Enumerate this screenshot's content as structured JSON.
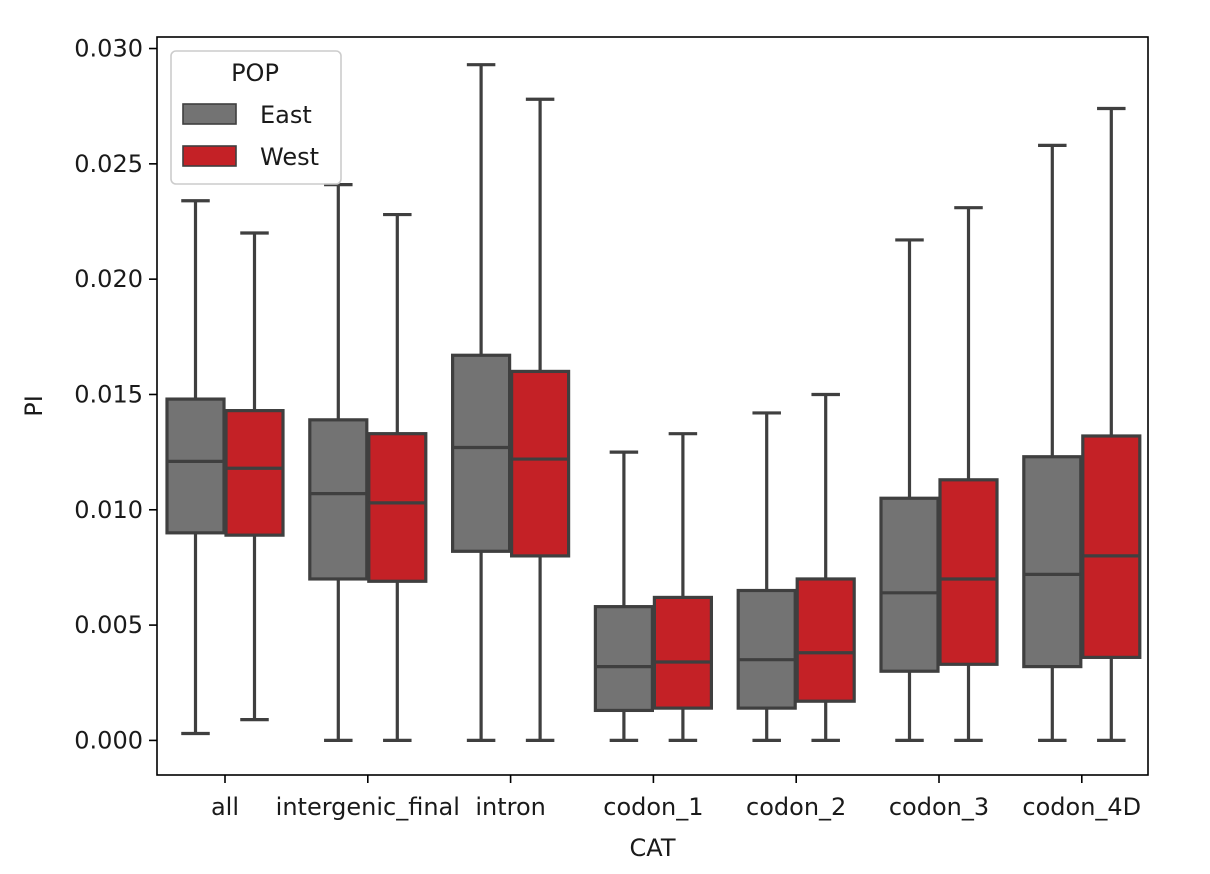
{
  "chart_data": {
    "type": "box",
    "xlabel": "CAT",
    "ylabel": "PI",
    "ylim": [
      -0.0015,
      0.0305
    ],
    "yticks": [
      0.0,
      0.005,
      0.01,
      0.015,
      0.02,
      0.025,
      0.03
    ],
    "ytick_labels": [
      "0.000",
      "0.005",
      "0.010",
      "0.015",
      "0.020",
      "0.025",
      "0.030"
    ],
    "categories": [
      "all",
      "intergenic_final",
      "intron",
      "codon_1",
      "codon_2",
      "codon_3",
      "codon_4D"
    ],
    "legend": {
      "title": "POP",
      "placement": "upper-left"
    },
    "series": [
      {
        "name": "East",
        "color": "#737373",
        "boxes": [
          {
            "whislo": 0.0003,
            "q1": 0.009,
            "med": 0.0121,
            "q3": 0.0148,
            "whishi": 0.0234
          },
          {
            "whislo": 0.0,
            "q1": 0.007,
            "med": 0.0107,
            "q3": 0.0139,
            "whishi": 0.0241
          },
          {
            "whislo": 0.0,
            "q1": 0.0082,
            "med": 0.0127,
            "q3": 0.0167,
            "whishi": 0.0293
          },
          {
            "whislo": 0.0,
            "q1": 0.0013,
            "med": 0.0032,
            "q3": 0.0058,
            "whishi": 0.0125
          },
          {
            "whislo": 0.0,
            "q1": 0.0014,
            "med": 0.0035,
            "q3": 0.0065,
            "whishi": 0.0142
          },
          {
            "whislo": 0.0,
            "q1": 0.003,
            "med": 0.0064,
            "q3": 0.0105,
            "whishi": 0.0217
          },
          {
            "whislo": 0.0,
            "q1": 0.0032,
            "med": 0.0072,
            "q3": 0.0123,
            "whishi": 0.0258
          }
        ]
      },
      {
        "name": "West",
        "color": "#c42126",
        "boxes": [
          {
            "whislo": 0.0009,
            "q1": 0.0089,
            "med": 0.0118,
            "q3": 0.0143,
            "whishi": 0.022
          },
          {
            "whislo": 0.0,
            "q1": 0.0069,
            "med": 0.0103,
            "q3": 0.0133,
            "whishi": 0.0228
          },
          {
            "whislo": 0.0,
            "q1": 0.008,
            "med": 0.0122,
            "q3": 0.016,
            "whishi": 0.0278
          },
          {
            "whislo": 0.0,
            "q1": 0.0014,
            "med": 0.0034,
            "q3": 0.0062,
            "whishi": 0.0133
          },
          {
            "whislo": 0.0,
            "q1": 0.0017,
            "med": 0.0038,
            "q3": 0.007,
            "whishi": 0.015
          },
          {
            "whislo": 0.0,
            "q1": 0.0033,
            "med": 0.007,
            "q3": 0.0113,
            "whishi": 0.0231
          },
          {
            "whislo": 0.0,
            "q1": 0.0036,
            "med": 0.008,
            "q3": 0.0132,
            "whishi": 0.0274
          }
        ]
      }
    ]
  }
}
